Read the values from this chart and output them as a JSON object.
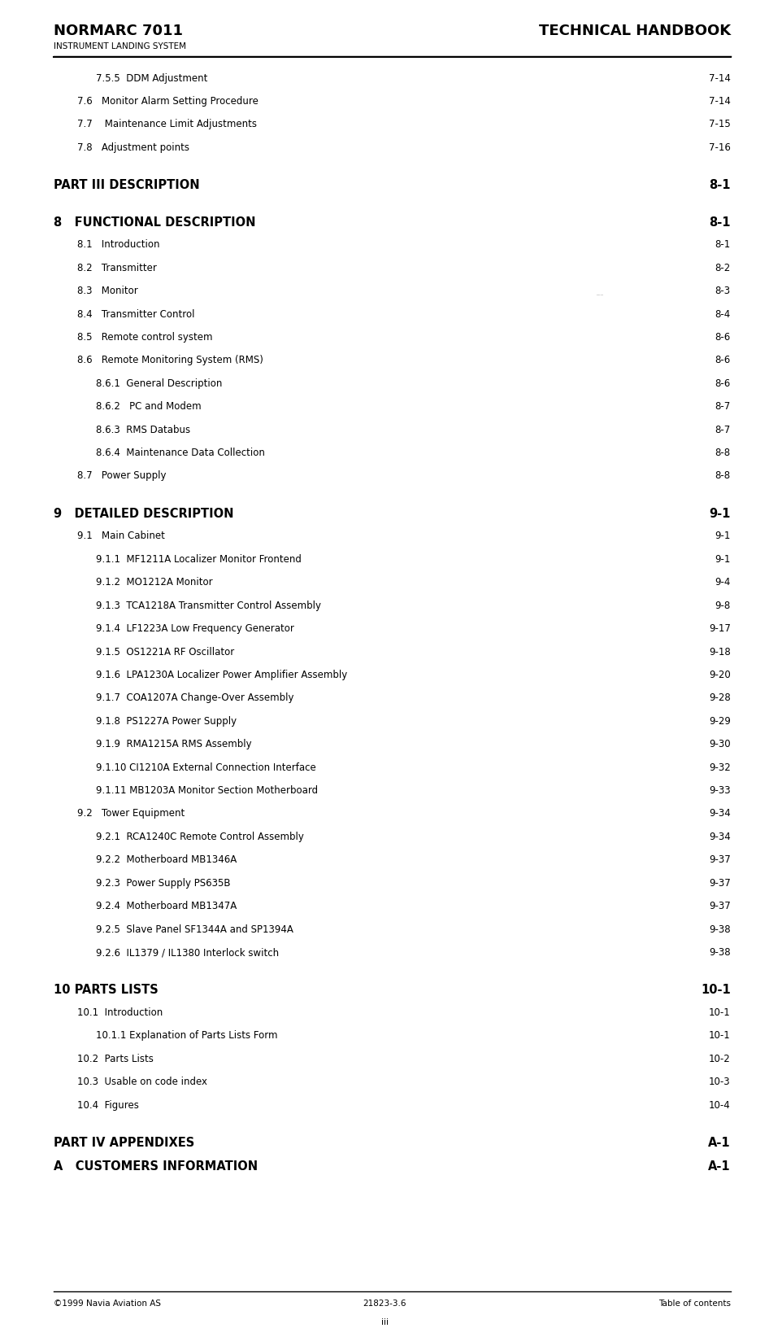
{
  "header_left": "NORMARC 7011",
  "header_right": "TECHNICAL HANDBOOK",
  "header_sub": "INSTRUMENT LANDING SYSTEM",
  "footer_left": "©1999 Navia Aviation AS",
  "footer_center": "21823-3.6",
  "footer_right": "Table of contents",
  "footer_page": "iii",
  "bg_color": "#ffffff",
  "text_color": "#000000",
  "entries": [
    {
      "indent": 2,
      "bold": false,
      "text": "7.5.5  DDM Adjustment",
      "dots": true,
      "page": "7-14"
    },
    {
      "indent": 1,
      "bold": false,
      "text": "7.6   Monitor Alarm Setting Procedure",
      "dots": true,
      "page": "7-14"
    },
    {
      "indent": 1,
      "bold": false,
      "text": "7.7    Maintenance Limit Adjustments",
      "dots": true,
      "page": "7-15"
    },
    {
      "indent": 1,
      "bold": false,
      "text": "7.8   Adjustment points",
      "dots": true,
      "page": "7-16"
    },
    {
      "indent": 0,
      "bold": false,
      "text": "",
      "dots": false,
      "page": ""
    },
    {
      "indent": 0,
      "bold": true,
      "text": "PART III DESCRIPTION",
      "dots": true,
      "page": "8-1",
      "large": true
    },
    {
      "indent": 0,
      "bold": false,
      "text": "",
      "dots": false,
      "page": ""
    },
    {
      "indent": 0,
      "bold": true,
      "text": "8   FUNCTIONAL DESCRIPTION",
      "dots": true,
      "page": "8-1",
      "large": true
    },
    {
      "indent": 1,
      "bold": false,
      "text": "8.1   Introduction",
      "dots": true,
      "page": "8-1"
    },
    {
      "indent": 1,
      "bold": false,
      "text": "8.2   Transmitter",
      "dots": true,
      "page": "8-2"
    },
    {
      "indent": 1,
      "bold": false,
      "text": "8.3   Monitor",
      "dots": true,
      "page": "8-3"
    },
    {
      "indent": 1,
      "bold": false,
      "text": "8.4   Transmitter Control",
      "dots": true,
      "page": "8-4"
    },
    {
      "indent": 1,
      "bold": false,
      "text": "8.5   Remote control system",
      "dots": true,
      "page": "8-6"
    },
    {
      "indent": 1,
      "bold": false,
      "text": "8.6   Remote Monitoring System (RMS)",
      "dots": true,
      "page": "8-6"
    },
    {
      "indent": 2,
      "bold": false,
      "text": "8.6.1  General Description",
      "dots": true,
      "page": "8-6"
    },
    {
      "indent": 2,
      "bold": false,
      "text": "8.6.2   PC and Modem",
      "dots": true,
      "page": "8-7"
    },
    {
      "indent": 2,
      "bold": false,
      "text": "8.6.3  RMS Databus",
      "dots": true,
      "page": "8-7"
    },
    {
      "indent": 2,
      "bold": false,
      "text": "8.6.4  Maintenance Data Collection",
      "dots": true,
      "page": "8-8"
    },
    {
      "indent": 1,
      "bold": false,
      "text": "8.7   Power Supply",
      "dots": true,
      "page": "8-8"
    },
    {
      "indent": 0,
      "bold": false,
      "text": "",
      "dots": false,
      "page": ""
    },
    {
      "indent": 0,
      "bold": true,
      "text": "9   DETAILED DESCRIPTION",
      "dots": true,
      "page": "9-1",
      "large": true
    },
    {
      "indent": 1,
      "bold": false,
      "text": "9.1   Main Cabinet",
      "dots": true,
      "page": "9-1"
    },
    {
      "indent": 2,
      "bold": false,
      "text": "9.1.1  MF1211A Localizer Monitor Frontend",
      "dots": true,
      "page": "9-1"
    },
    {
      "indent": 2,
      "bold": false,
      "text": "9.1.2  MO1212A Monitor",
      "dots": true,
      "page": "9-4"
    },
    {
      "indent": 2,
      "bold": false,
      "text": "9.1.3  TCA1218A Transmitter Control Assembly",
      "dots": true,
      "page": "9-8"
    },
    {
      "indent": 2,
      "bold": false,
      "text": "9.1.4  LF1223A Low Frequency Generator",
      "dots": true,
      "page": "9-17"
    },
    {
      "indent": 2,
      "bold": false,
      "text": "9.1.5  OS1221A RF Oscillator",
      "dots": true,
      "page": "9-18"
    },
    {
      "indent": 2,
      "bold": false,
      "text": "9.1.6  LPA1230A Localizer Power Amplifier Assembly",
      "dots": true,
      "page": "9-20"
    },
    {
      "indent": 2,
      "bold": false,
      "text": "9.1.7  COA1207A Change-Over Assembly",
      "dots": true,
      "page": "9-28"
    },
    {
      "indent": 2,
      "bold": false,
      "text": "9.1.8  PS1227A Power Supply",
      "dots": true,
      "page": "9-29"
    },
    {
      "indent": 2,
      "bold": false,
      "text": "9.1.9  RMA1215A RMS Assembly",
      "dots": true,
      "page": "9-30"
    },
    {
      "indent": 2,
      "bold": false,
      "text": "9.1.10 CI1210A External Connection Interface",
      "dots": true,
      "page": "9-32"
    },
    {
      "indent": 2,
      "bold": false,
      "text": "9.1.11 MB1203A Monitor Section Motherboard",
      "dots": true,
      "page": "9-33"
    },
    {
      "indent": 1,
      "bold": false,
      "text": "9.2   Tower Equipment",
      "dots": true,
      "page": "9-34"
    },
    {
      "indent": 2,
      "bold": false,
      "text": "9.2.1  RCA1240C Remote Control Assembly",
      "dots": true,
      "page": "9-34"
    },
    {
      "indent": 2,
      "bold": false,
      "text": "9.2.2  Motherboard MB1346A",
      "dots": true,
      "page": "9-37"
    },
    {
      "indent": 2,
      "bold": false,
      "text": "9.2.3  Power Supply PS635B",
      "dots": true,
      "page": "9-37"
    },
    {
      "indent": 2,
      "bold": false,
      "text": "9.2.4  Motherboard MB1347A",
      "dots": true,
      "page": "9-37"
    },
    {
      "indent": 2,
      "bold": false,
      "text": "9.2.5  Slave Panel SF1344A and SP1394A",
      "dots": true,
      "page": "9-38"
    },
    {
      "indent": 2,
      "bold": false,
      "text": "9.2.6  IL1379 / IL1380 Interlock switch",
      "dots": true,
      "page": "9-38"
    },
    {
      "indent": 0,
      "bold": false,
      "text": "",
      "dots": false,
      "page": ""
    },
    {
      "indent": 0,
      "bold": true,
      "text": "10 PARTS LISTS",
      "dots": true,
      "page": "10-1",
      "large": true
    },
    {
      "indent": 1,
      "bold": false,
      "text": "10.1  Introduction",
      "dots": true,
      "page": "10-1"
    },
    {
      "indent": 2,
      "bold": false,
      "text": "10.1.1 Explanation of Parts Lists Form",
      "dots": true,
      "page": "10-1"
    },
    {
      "indent": 1,
      "bold": false,
      "text": "10.2  Parts Lists     ",
      "dots": true,
      "page": "10-2"
    },
    {
      "indent": 1,
      "bold": false,
      "text": "10.3  Usable on code index",
      "dots": true,
      "page": "10-3"
    },
    {
      "indent": 1,
      "bold": false,
      "text": "10.4  Figures",
      "dots": true,
      "page": "10-4"
    },
    {
      "indent": 0,
      "bold": false,
      "text": "",
      "dots": false,
      "page": ""
    },
    {
      "indent": 0,
      "bold": true,
      "text": "PART IV APPENDIXES",
      "dots": true,
      "page": "A-1",
      "large": true
    },
    {
      "indent": 0,
      "bold": true,
      "text": "A   CUSTOMERS INFORMATION",
      "dots": true,
      "page": "A-1",
      "large": true
    }
  ]
}
